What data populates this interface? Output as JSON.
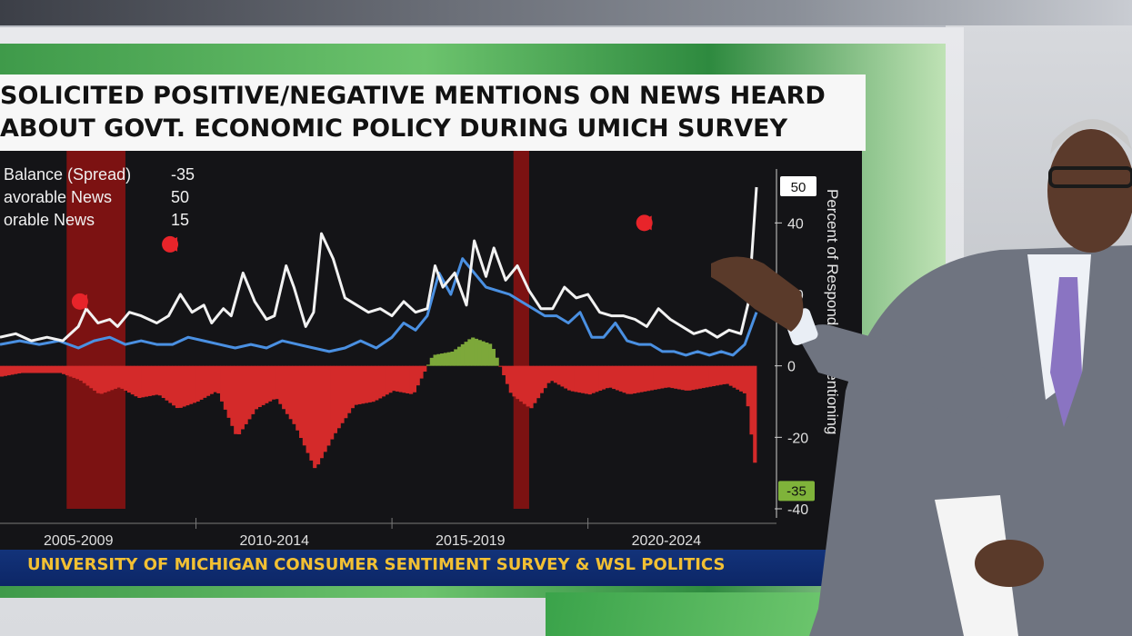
{
  "title": {
    "line1": "SOLICITED POSITIVE/NEGATIVE MENTIONS ON NEWS HEARD",
    "line2": "ABOUT GOVT. ECONOMIC POLICY DURING UMICH SURVEY"
  },
  "legend": [
    {
      "label": "Balance (Spread)",
      "value": "-35"
    },
    {
      "label": "avorable News",
      "value": "50"
    },
    {
      "label": "orable News",
      "value": "15"
    }
  ],
  "source": "UNIVERSITY OF MICHIGAN CONSUMER SENTIMENT SURVEY & WSL POLITICS",
  "colors": {
    "unfavorable": "#f2f2f2",
    "favorable": "#4a90e2",
    "balance_negative": "#d42a2a",
    "balance_positive": "#7da83a",
    "recession_band": "#8e1212",
    "title_bg": "#f7f7f7",
    "source_bg": "#13337a",
    "source_text": "#f2c033"
  },
  "chart_data": {
    "type": "line",
    "xlabel": "",
    "ylabel": "Percent of Respondents Mentioning",
    "ylim": [
      -40,
      50
    ],
    "y_ticks": [
      40,
      20,
      0,
      -20,
      -40
    ],
    "x_tick_labels": [
      "2005-2009",
      "2010-2014",
      "2015-2019",
      "2020-2024"
    ],
    "x_tick_years": [
      2007,
      2012,
      2017,
      2022
    ],
    "x_range": [
      2005,
      2024.3
    ],
    "latest_labels": {
      "unfavorable": "50",
      "balance": "-35"
    },
    "recession_bands": [
      [
        2006.7,
        2008.2
      ],
      [
        2018.1,
        2018.5
      ]
    ],
    "series": [
      {
        "key": "unfavorable",
        "x": [
          2005.0,
          2005.4,
          2005.8,
          2006.2,
          2006.6,
          2007.0,
          2007.2,
          2007.5,
          2007.8,
          2008.0,
          2008.3,
          2008.6,
          2009.0,
          2009.3,
          2009.6,
          2009.9,
          2010.2,
          2010.4,
          2010.7,
          2010.9,
          2011.2,
          2011.5,
          2011.8,
          2012.0,
          2012.3,
          2012.5,
          2012.8,
          2013.0,
          2013.2,
          2013.5,
          2013.8,
          2014.1,
          2014.4,
          2014.7,
          2015.0,
          2015.3,
          2015.6,
          2015.9,
          2016.1,
          2016.3,
          2016.6,
          2016.9,
          2017.1,
          2017.4,
          2017.6,
          2017.9,
          2018.2,
          2018.5,
          2018.8,
          2019.1,
          2019.4,
          2019.7,
          2020.0,
          2020.3,
          2020.6,
          2020.9,
          2021.2,
          2021.5,
          2021.8,
          2022.1,
          2022.4,
          2022.7,
          2023.0,
          2023.3,
          2023.6,
          2023.9,
          2024.1,
          2024.3
        ],
        "y": [
          8,
          9,
          7,
          8,
          7,
          11,
          16,
          12,
          13,
          11,
          15,
          14,
          12,
          14,
          20,
          15,
          17,
          12,
          16,
          14,
          26,
          18,
          13,
          14,
          28,
          22,
          11,
          15,
          37,
          30,
          19,
          17,
          15,
          16,
          14,
          18,
          15,
          16,
          28,
          22,
          26,
          17,
          35,
          25,
          33,
          24,
          28,
          21,
          16,
          16,
          22,
          19,
          20,
          15,
          14,
          14,
          13,
          11,
          16,
          13,
          11,
          9,
          10,
          8,
          10,
          9,
          18,
          50
        ]
      },
      {
        "key": "favorable",
        "x": [
          2005.0,
          2005.5,
          2006.0,
          2006.5,
          2007.0,
          2007.4,
          2007.8,
          2008.2,
          2008.6,
          2009.0,
          2009.4,
          2009.8,
          2010.2,
          2010.6,
          2011.0,
          2011.4,
          2011.8,
          2012.2,
          2012.6,
          2013.0,
          2013.4,
          2013.8,
          2014.2,
          2014.6,
          2015.0,
          2015.3,
          2015.6,
          2015.9,
          2016.2,
          2016.5,
          2016.8,
          2017.1,
          2017.4,
          2017.7,
          2018.0,
          2018.3,
          2018.6,
          2018.9,
          2019.2,
          2019.5,
          2019.8,
          2020.1,
          2020.4,
          2020.7,
          2021.0,
          2021.3,
          2021.6,
          2021.9,
          2022.2,
          2022.5,
          2022.8,
          2023.1,
          2023.4,
          2023.7,
          2024.0,
          2024.3
        ],
        "y": [
          6,
          7,
          6,
          7,
          5,
          7,
          8,
          6,
          7,
          6,
          6,
          8,
          7,
          6,
          5,
          6,
          5,
          7,
          6,
          5,
          4,
          5,
          7,
          5,
          8,
          12,
          10,
          14,
          26,
          20,
          30,
          26,
          22,
          21,
          20,
          18,
          16,
          14,
          14,
          12,
          15,
          8,
          8,
          12,
          7,
          6,
          6,
          4,
          4,
          3,
          4,
          3,
          4,
          3,
          6,
          15
        ]
      },
      {
        "key": "balance",
        "x": [
          2005.0,
          2005.5,
          2006.0,
          2006.5,
          2007.0,
          2007.5,
          2008.0,
          2008.5,
          2009.0,
          2009.5,
          2010.0,
          2010.5,
          2011.0,
          2011.5,
          2012.0,
          2012.5,
          2013.0,
          2013.5,
          2014.0,
          2014.5,
          2015.0,
          2015.5,
          2016.0,
          2016.5,
          2017.0,
          2017.5,
          2018.0,
          2018.5,
          2019.0,
          2019.5,
          2020.0,
          2020.5,
          2021.0,
          2021.5,
          2022.0,
          2022.5,
          2023.0,
          2023.5,
          2024.0,
          2024.3
        ],
        "y": [
          -3,
          -2,
          -2,
          -2,
          -4,
          -8,
          -6,
          -9,
          -8,
          -12,
          -10,
          -7,
          -20,
          -12,
          -9,
          -17,
          -29,
          -19,
          -11,
          -10,
          -7,
          -8,
          3,
          4,
          8,
          6,
          -8,
          -12,
          -4,
          -7,
          -8,
          -6,
          -8,
          -7,
          -6,
          -7,
          -6,
          -5,
          -8,
          -35
        ]
      }
    ]
  },
  "presenter": {
    "alt": "news anchor gesturing toward chart"
  }
}
